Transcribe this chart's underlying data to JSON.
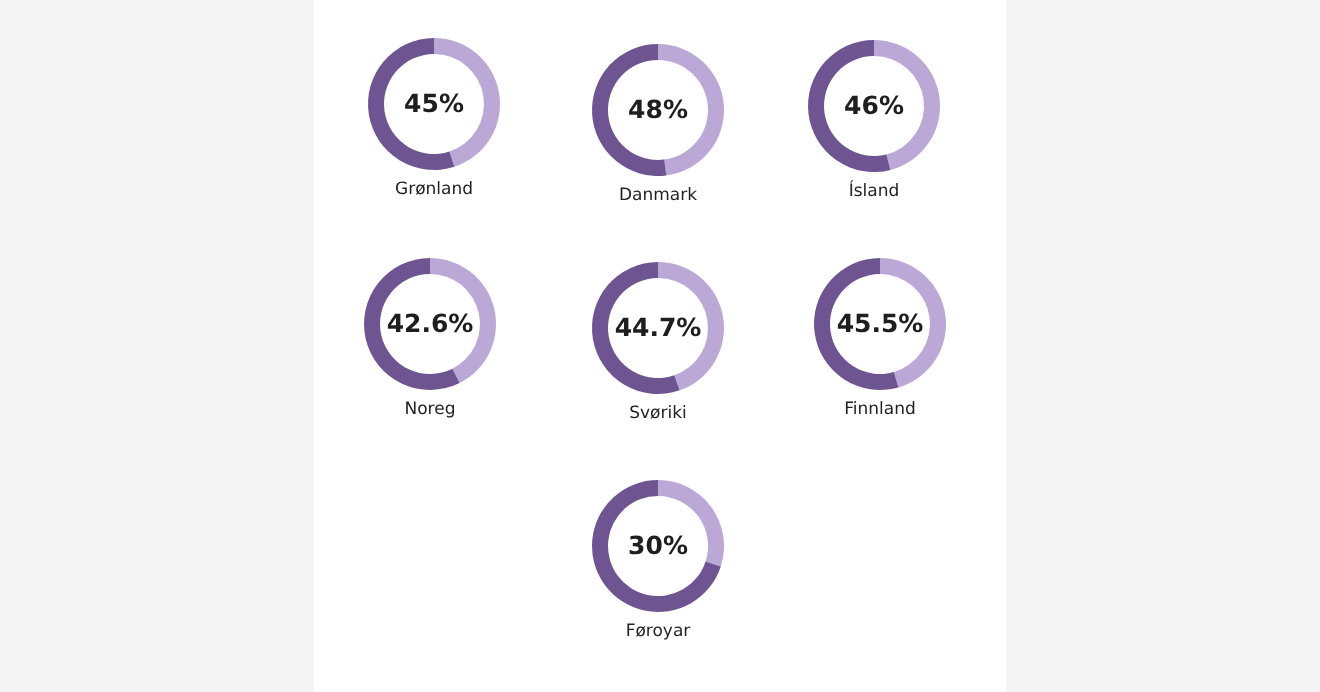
{
  "chart_data": [
    {
      "type": "donut",
      "title": "Grønland",
      "categories": [
        null,
        null
      ],
      "values": [
        45,
        55
      ],
      "colors": [
        "#bba8d6",
        "#6e5591"
      ],
      "value_labels": [
        "45%",
        null
      ]
    },
    {
      "type": "donut",
      "title": "Danmark",
      "categories": [
        null,
        null
      ],
      "values": [
        48,
        52
      ],
      "colors": [
        "#bba8d6",
        "#6e5591"
      ],
      "value_labels": [
        "48%",
        null
      ]
    },
    {
      "type": "donut",
      "title": "Ísland",
      "categories": [
        null,
        null
      ],
      "values": [
        46,
        54
      ],
      "colors": [
        "#bba8d6",
        "#6e5591"
      ],
      "value_labels": [
        "46%",
        null
      ]
    },
    {
      "type": "donut",
      "title": "Noreg",
      "categories": [
        null,
        null
      ],
      "values": [
        42.6,
        57.4
      ],
      "colors": [
        "#bba8d6",
        "#6e5591"
      ],
      "value_labels": [
        "42.6%",
        null
      ]
    },
    {
      "type": "donut",
      "title": "Svøriki",
      "categories": [
        null,
        null
      ],
      "values": [
        44.7,
        55.3
      ],
      "colors": [
        "#bba8d6",
        "#6e5591"
      ],
      "value_labels": [
        "44.7%",
        null
      ]
    },
    {
      "type": "donut",
      "title": "Finnland",
      "categories": [
        null,
        null
      ],
      "values": [
        45.5,
        54.5
      ],
      "colors": [
        "#bba8d6",
        "#6e5591"
      ],
      "value_labels": [
        "45.5%",
        null
      ]
    },
    {
      "type": "donut",
      "title": "Føroyar",
      "categories": [
        null,
        null
      ],
      "values": [
        30,
        70
      ],
      "colors": [
        "#bba8d6",
        "#6e5591"
      ],
      "value_labels": [
        "30%",
        null
      ]
    }
  ]
}
